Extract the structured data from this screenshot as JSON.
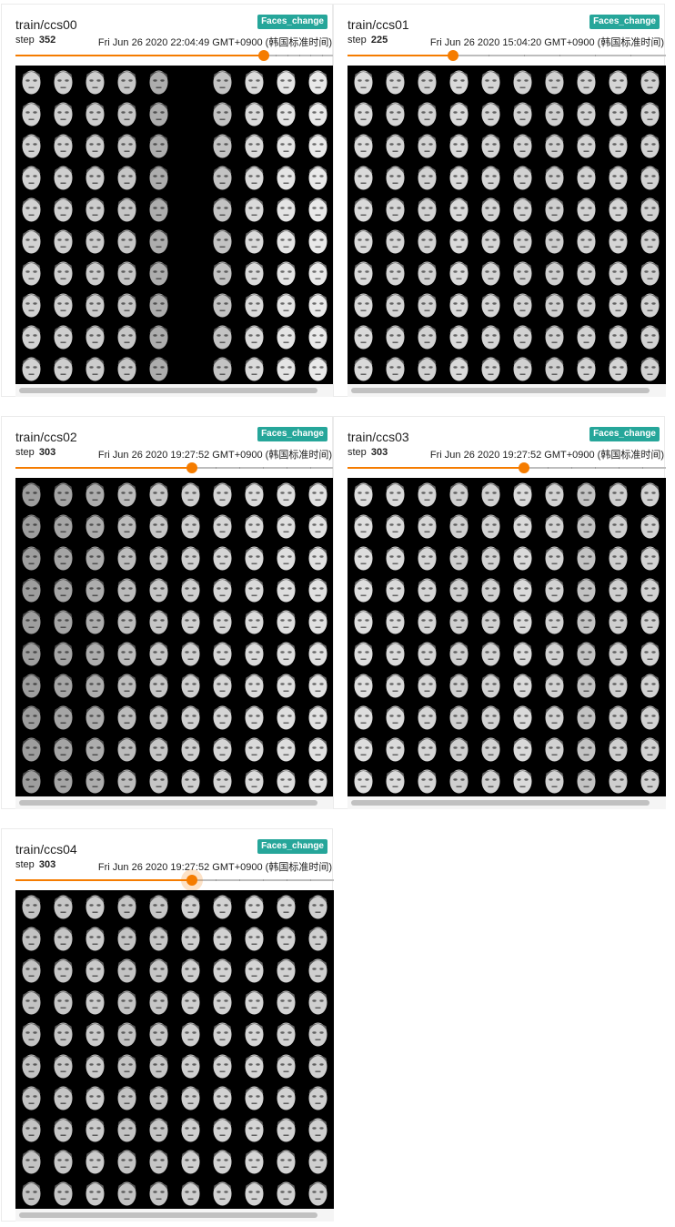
{
  "cards": [
    {
      "title": "train/ccs00",
      "tag": "Faces_change",
      "step_label": "step",
      "step": "352",
      "wall_time": "Fri Jun 26 2020 22:04:49 GMT+0900 (韩国标准时间)",
      "slider_fraction": 0.78,
      "focused": false,
      "images": {
        "grid": "10x10",
        "description_icon": "face-thumbnail-grid",
        "tone_columns": [
          0.8,
          0.78,
          0.76,
          0.72,
          0.55,
          0.0,
          0.7,
          0.85,
          0.92,
          0.95
        ]
      }
    },
    {
      "title": "train/ccs01",
      "tag": "Faces_change",
      "step_label": "step",
      "step": "225",
      "wall_time": "Fri Jun 26 2020 15:04:20 GMT+0900 (韩国标准时间)",
      "slider_fraction": 0.33,
      "focused": false,
      "images": {
        "grid": "10x10",
        "description_icon": "face-thumbnail-grid",
        "tone_columns": [
          0.85,
          0.82,
          0.8,
          0.85,
          0.82,
          0.8,
          0.78,
          0.8,
          0.82,
          0.8
        ]
      }
    },
    {
      "title": "train/ccs02",
      "tag": "Faces_change",
      "step_label": "step",
      "step": "303",
      "wall_time": "Fri Jun 26 2020 19:27:52 GMT+0900 (韩国标准时间)",
      "slider_fraction": 0.555,
      "focused": false,
      "images": {
        "grid": "10x10",
        "description_icon": "face-thumbnail-grid",
        "tone_columns": [
          0.45,
          0.5,
          0.55,
          0.65,
          0.72,
          0.78,
          0.82,
          0.85,
          0.88,
          0.9
        ]
      }
    },
    {
      "title": "train/ccs03",
      "tag": "Faces_change",
      "step_label": "step",
      "step": "303",
      "wall_time": "Fri Jun 26 2020 19:27:52 GMT+0900 (韩国标准时间)",
      "slider_fraction": 0.555,
      "focused": false,
      "images": {
        "grid": "10x10",
        "description_icon": "face-thumbnail-grid",
        "tone_columns": [
          0.88,
          0.85,
          0.82,
          0.78,
          0.8,
          0.85,
          0.8,
          0.7,
          0.78,
          0.8
        ]
      }
    },
    {
      "title": "train/ccs04",
      "tag": "Faces_change",
      "step_label": "step",
      "step": "303",
      "wall_time": "Fri Jun 26 2020 19:27:52 GMT+0900 (韩国标准时间)",
      "slider_fraction": 0.555,
      "focused": true,
      "images": {
        "grid": "10x10",
        "description_icon": "face-thumbnail-grid",
        "tone_columns": [
          0.7,
          0.72,
          0.75,
          0.7,
          0.72,
          0.78,
          0.8,
          0.82,
          0.8,
          0.78
        ]
      }
    }
  ],
  "colors": {
    "accent": "#f57c00",
    "tag": "#26a69a",
    "image_background": "#000000"
  }
}
